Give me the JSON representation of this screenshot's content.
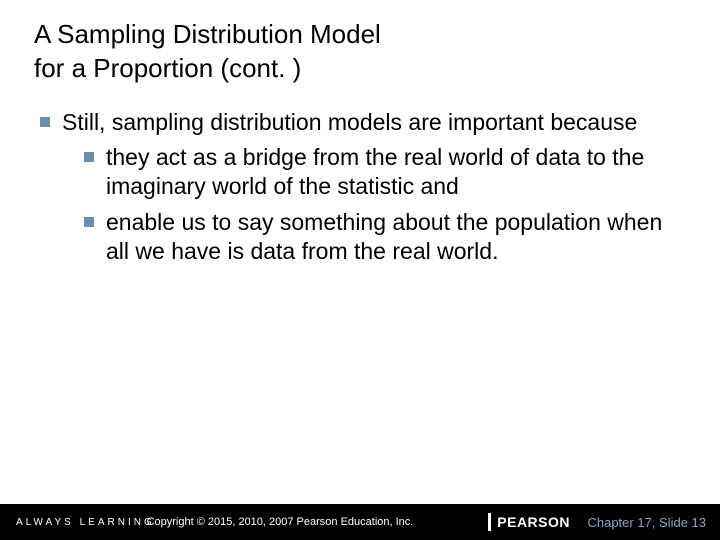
{
  "title": {
    "line1": "A Sampling Distribution Model",
    "line2": "for a Proportion (cont. )"
  },
  "bullets": {
    "marker_color": "#6b8fa8",
    "marker_size": 10,
    "items": [
      {
        "level": 0,
        "text": "Still, sampling distribution models are important because"
      },
      {
        "level": 1,
        "text": "they act as a bridge from the real world of data to the imaginary world of the statistic and"
      },
      {
        "level": 1,
        "text": "enable us to say something about the population when all we have is data from the real world."
      }
    ]
  },
  "footer": {
    "background_color": "#000000",
    "always_learning": "ALWAYS LEARNING",
    "copyright": "Copyright © 2015, 2010, 2007 Pearson Education, Inc.",
    "brand": "PEARSON",
    "chapter": "Chapter 17, Slide 13",
    "chapter_color": "#8aa4c8"
  }
}
